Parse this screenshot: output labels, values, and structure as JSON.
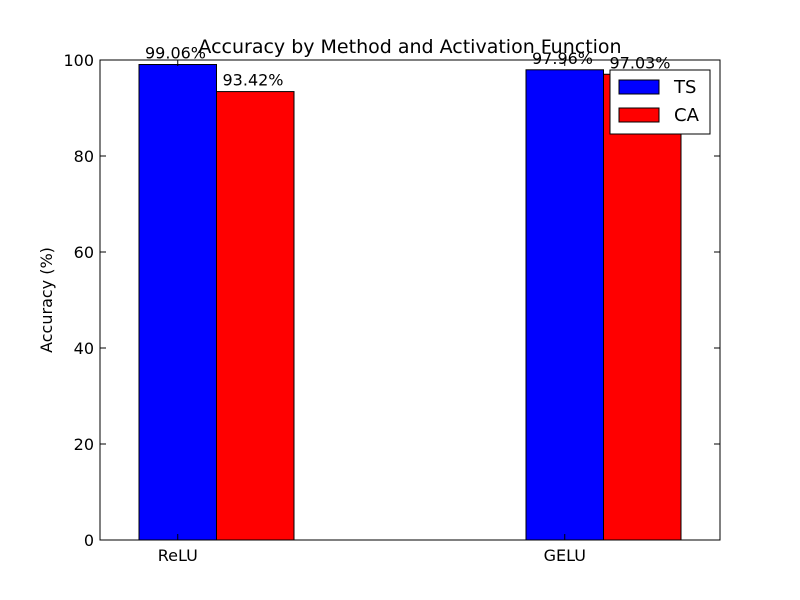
{
  "chart_data": {
    "type": "bar",
    "title": "Accuracy by Method and Activation Function",
    "xlabel": "",
    "ylabel": "Accuracy (%)",
    "categories": [
      "ReLU",
      "GELU"
    ],
    "ylim": [
      0,
      100
    ],
    "yticks": [
      0,
      20,
      40,
      60,
      80,
      100
    ],
    "series": [
      {
        "name": "TS",
        "color": "#0000ff",
        "values": [
          99.06,
          97.96
        ],
        "labels": [
          "99.06%",
          "97.96%"
        ]
      },
      {
        "name": "CA",
        "color": "#ff0000",
        "values": [
          93.42,
          97.03
        ],
        "labels": [
          "93.42%",
          "97.03%"
        ]
      }
    ],
    "legend": {
      "position": "top-right"
    },
    "grid": false
  }
}
